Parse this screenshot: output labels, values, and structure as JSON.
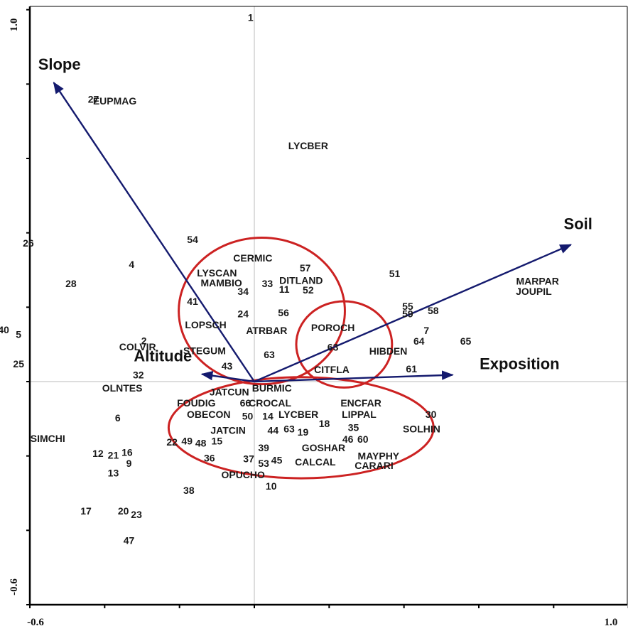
{
  "chart_data": {
    "type": "scatter",
    "title": "",
    "xlabel": "",
    "ylabel": "",
    "xlim": [
      -0.6,
      1.0
    ],
    "ylim": [
      -0.6,
      1.0
    ],
    "x_tick_labels": [
      "-0.6",
      "1.0"
    ],
    "y_tick_labels": [
      "1.0",
      "-0.6"
    ],
    "grid": false,
    "colors": {
      "axis": "#000000",
      "vector": "#141a6e",
      "ellipse": "#cc2222",
      "text": "#1a1a1a",
      "zero_line": "#bbbbbb"
    },
    "vectors": [
      {
        "name": "Slope",
        "x": -0.536,
        "y": 0.804
      },
      {
        "name": "Soil",
        "x": 0.846,
        "y": 0.368
      },
      {
        "name": "Exposition",
        "x": 0.53,
        "y": 0.018
      },
      {
        "name": "Altitude",
        "x": -0.14,
        "y": 0.02
      }
    ],
    "ellipses": [
      {
        "cx": 0.02,
        "cy": 0.19,
        "rx": 0.222,
        "ry": 0.197
      },
      {
        "cx": 0.24,
        "cy": 0.1,
        "rx": 0.128,
        "ry": 0.116
      },
      {
        "cx": 0.125,
        "cy": -0.124,
        "rx": 0.354,
        "ry": 0.136
      }
    ],
    "species": [
      {
        "label": "EUPMAG",
        "x": -0.373,
        "y": 0.752
      },
      {
        "label": "LYCBER",
        "x": 0.144,
        "y": 0.632
      },
      {
        "label": "CERMIC",
        "x": -0.004,
        "y": 0.33
      },
      {
        "label": "LYSCAN",
        "x": -0.1,
        "y": 0.29
      },
      {
        "label": "MAMBIO",
        "x": -0.088,
        "y": 0.263
      },
      {
        "label": "DITLAND",
        "x": 0.125,
        "y": 0.27
      },
      {
        "label": "LOPSCH",
        "x": -0.13,
        "y": 0.15
      },
      {
        "label": "ATRBAR",
        "x": 0.033,
        "y": 0.135
      },
      {
        "label": "POROCH",
        "x": 0.21,
        "y": 0.143
      },
      {
        "label": "HIBDEN",
        "x": 0.358,
        "y": 0.08
      },
      {
        "label": "CITFLA",
        "x": 0.207,
        "y": 0.03
      },
      {
        "label": "COLVIR",
        "x": -0.312,
        "y": 0.091
      },
      {
        "label": "STEGUM",
        "x": -0.133,
        "y": 0.081
      },
      {
        "label": "OLNTES",
        "x": -0.353,
        "y": -0.02
      },
      {
        "label": "MARPAR",
        "x": 0.757,
        "y": 0.268
      },
      {
        "label": "JOUPIL",
        "x": 0.747,
        "y": 0.24
      },
      {
        "label": "JATCUN",
        "x": -0.067,
        "y": -0.03
      },
      {
        "label": "BURMIC",
        "x": 0.047,
        "y": -0.02
      },
      {
        "label": "FOUDIG",
        "x": -0.155,
        "y": -0.06
      },
      {
        "label": "CROCAL",
        "x": 0.042,
        "y": -0.06
      },
      {
        "label": "ENCFAR",
        "x": 0.285,
        "y": -0.06
      },
      {
        "label": "OBECON",
        "x": -0.122,
        "y": -0.09
      },
      {
        "label": "LYCBER",
        "x": 0.118,
        "y": -0.09
      },
      {
        "label": "LIPPAL",
        "x": 0.28,
        "y": -0.09
      },
      {
        "label": "SOLHIN",
        "x": 0.447,
        "y": -0.13
      },
      {
        "label": "JATCIN",
        "x": -0.07,
        "y": -0.133
      },
      {
        "label": "GOSHAR",
        "x": 0.185,
        "y": -0.18
      },
      {
        "label": "MAYPHY",
        "x": 0.332,
        "y": -0.202
      },
      {
        "label": "CALCAL",
        "x": 0.163,
        "y": -0.218
      },
      {
        "label": "CARARI",
        "x": 0.32,
        "y": -0.228
      },
      {
        "label": "OPUCHO",
        "x": -0.03,
        "y": -0.253
      },
      {
        "label": "SIMCHI",
        "x": -0.552,
        "y": -0.155
      }
    ],
    "sites": [
      {
        "label": "1",
        "x": -0.01,
        "y": 0.977
      },
      {
        "label": "27",
        "x": -0.43,
        "y": 0.757
      },
      {
        "label": "54",
        "x": -0.165,
        "y": 0.38
      },
      {
        "label": "26",
        "x": -0.604,
        "y": 0.37
      },
      {
        "label": "4",
        "x": -0.328,
        "y": 0.313
      },
      {
        "label": "28",
        "x": -0.49,
        "y": 0.261
      },
      {
        "label": "57",
        "x": 0.136,
        "y": 0.303
      },
      {
        "label": "33",
        "x": 0.035,
        "y": 0.261
      },
      {
        "label": "11",
        "x": 0.08,
        "y": 0.246
      },
      {
        "label": "52",
        "x": 0.144,
        "y": 0.244
      },
      {
        "label": "34",
        "x": -0.03,
        "y": 0.24
      },
      {
        "label": "41",
        "x": -0.165,
        "y": 0.213
      },
      {
        "label": "51",
        "x": 0.375,
        "y": 0.288
      },
      {
        "label": "55",
        "x": 0.41,
        "y": 0.2
      },
      {
        "label": "58",
        "x": 0.478,
        "y": 0.189
      },
      {
        "label": "59",
        "x": 0.41,
        "y": 0.18
      },
      {
        "label": "24",
        "x": -0.03,
        "y": 0.18
      },
      {
        "label": "56",
        "x": 0.078,
        "y": 0.183
      },
      {
        "label": "7",
        "x": 0.46,
        "y": 0.135
      },
      {
        "label": "64",
        "x": 0.44,
        "y": 0.106
      },
      {
        "label": "65",
        "x": 0.565,
        "y": 0.106
      },
      {
        "label": "40",
        "x": -0.67,
        "y": 0.137
      },
      {
        "label": "5",
        "x": -0.63,
        "y": 0.125
      },
      {
        "label": "2",
        "x": -0.295,
        "y": 0.107
      },
      {
        "label": "63",
        "x": 0.04,
        "y": 0.07
      },
      {
        "label": "63",
        "x": 0.21,
        "y": 0.09
      },
      {
        "label": "43",
        "x": -0.073,
        "y": 0.04
      },
      {
        "label": "61",
        "x": 0.42,
        "y": 0.032
      },
      {
        "label": "25",
        "x": -0.63,
        "y": 0.045
      },
      {
        "label": "32",
        "x": -0.31,
        "y": 0.016
      },
      {
        "label": "66",
        "x": -0.024,
        "y": -0.06
      },
      {
        "label": "50",
        "x": -0.018,
        "y": -0.095
      },
      {
        "label": "14",
        "x": 0.036,
        "y": -0.095
      },
      {
        "label": "30",
        "x": 0.472,
        "y": -0.09
      },
      {
        "label": "6",
        "x": -0.365,
        "y": -0.1
      },
      {
        "label": "44",
        "x": 0.05,
        "y": -0.133
      },
      {
        "label": "63",
        "x": 0.093,
        "y": -0.13
      },
      {
        "label": "19",
        "x": 0.13,
        "y": -0.138
      },
      {
        "label": "18",
        "x": 0.187,
        "y": -0.115
      },
      {
        "label": "35",
        "x": 0.265,
        "y": -0.126
      },
      {
        "label": "46",
        "x": 0.25,
        "y": -0.157
      },
      {
        "label": "60",
        "x": 0.29,
        "y": -0.157
      },
      {
        "label": "22",
        "x": -0.22,
        "y": -0.165
      },
      {
        "label": "49",
        "x": -0.18,
        "y": -0.162
      },
      {
        "label": "48",
        "x": -0.143,
        "y": -0.168
      },
      {
        "label": "15",
        "x": -0.1,
        "y": -0.162
      },
      {
        "label": "39",
        "x": 0.025,
        "y": -0.18
      },
      {
        "label": "12",
        "x": -0.418,
        "y": -0.195
      },
      {
        "label": "21",
        "x": -0.377,
        "y": -0.2
      },
      {
        "label": "16",
        "x": -0.34,
        "y": -0.193
      },
      {
        "label": "9",
        "x": -0.335,
        "y": -0.222
      },
      {
        "label": "36",
        "x": -0.12,
        "y": -0.208
      },
      {
        "label": "37",
        "x": -0.015,
        "y": -0.21
      },
      {
        "label": "53",
        "x": 0.025,
        "y": -0.222
      },
      {
        "label": "45",
        "x": 0.06,
        "y": -0.214
      },
      {
        "label": "13",
        "x": -0.377,
        "y": -0.248
      },
      {
        "label": "10",
        "x": 0.045,
        "y": -0.283
      },
      {
        "label": "38",
        "x": -0.175,
        "y": -0.295
      },
      {
        "label": "17",
        "x": -0.45,
        "y": -0.35
      },
      {
        "label": "20",
        "x": -0.35,
        "y": -0.35
      },
      {
        "label": "23",
        "x": -0.315,
        "y": -0.36
      },
      {
        "label": "47",
        "x": -0.335,
        "y": -0.43
      }
    ]
  }
}
